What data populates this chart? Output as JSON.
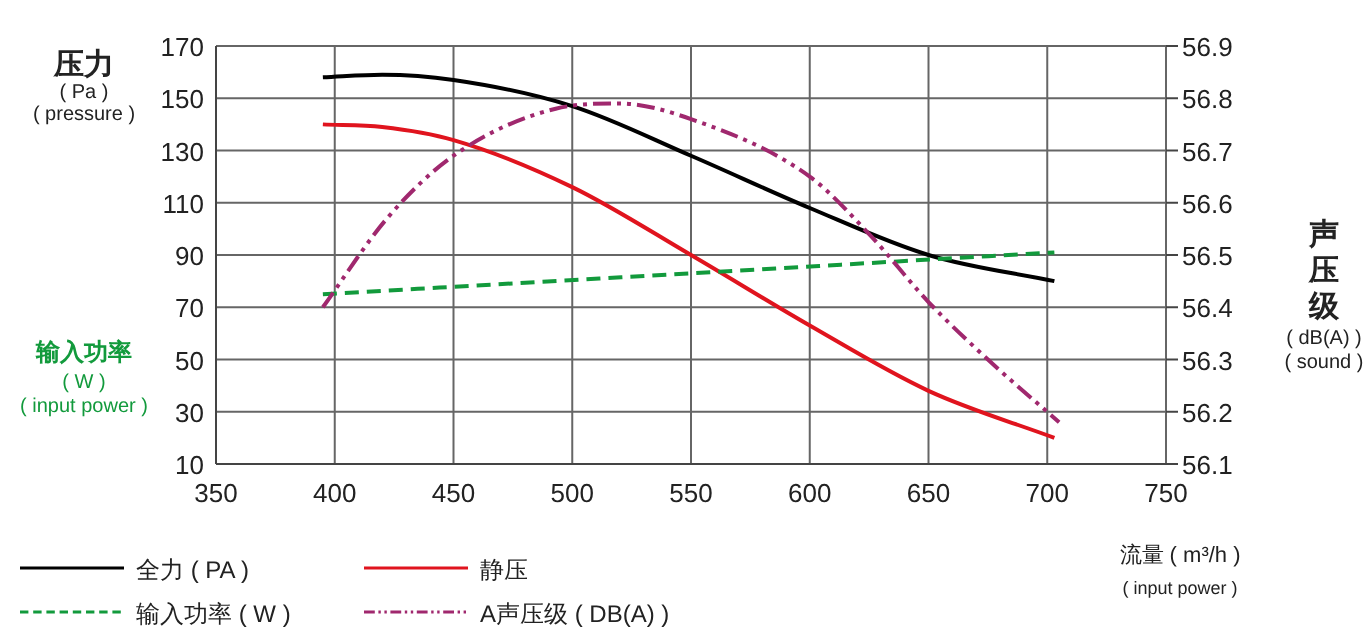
{
  "chart_data": {
    "type": "line",
    "xlabel": "流量 ( m³/h )\n( input power )",
    "ylabel": "压力\n( Pa )\n( pressure )",
    "y2label": "声压级\n( dB(A) )\n( sound )",
    "annotations": [
      "输入功率\n( W )\n( input power )"
    ],
    "xlim": [
      350,
      750
    ],
    "xticks": [
      350,
      400,
      450,
      500,
      550,
      600,
      650,
      700,
      750
    ],
    "ylim": [
      10,
      170
    ],
    "yticks": [
      10,
      30,
      50,
      70,
      90,
      110,
      130,
      150,
      170
    ],
    "y2lim": [
      56.1,
      56.9
    ],
    "y2ticks": [
      {
        "value": 56.1,
        "label": "56.1"
      },
      {
        "value": 56.2,
        "label": "56.2"
      },
      {
        "value": 56.3,
        "label": "56.3"
      },
      {
        "value": 56.4,
        "label": "56.4"
      },
      {
        "value": 56.5,
        "label": "56.5"
      },
      {
        "value": 56.6,
        "label": "56.6"
      },
      {
        "value": 56.7,
        "label": "56.7"
      },
      {
        "value": 56.8,
        "label": "56.8"
      },
      {
        "value": 56.9,
        "label": "56.9"
      }
    ],
    "grid": true,
    "legend": "bottom",
    "marker": "none",
    "series": [
      {
        "name": "全力 ( PA )",
        "color": "#000000",
        "line_style": "solid",
        "x": [
          395,
          420,
          450,
          500,
          550,
          600,
          650,
          703
        ],
        "values": [
          158,
          159,
          157,
          147,
          128,
          108,
          90,
          80
        ]
      },
      {
        "name": "静压",
        "color": "#e0141e",
        "line_style": "solid",
        "x": [
          395,
          420,
          450,
          500,
          550,
          600,
          650,
          703
        ],
        "values": [
          140,
          139,
          134,
          116,
          90,
          63,
          38,
          20
        ]
      },
      {
        "name": "输入功率 ( W )",
        "color": "#129a3c",
        "line_style": "dashed",
        "x": [
          395,
          550,
          703
        ],
        "values": [
          75,
          83,
          91
        ]
      },
      {
        "name": "A声压级 ( DB(A) )",
        "color": "#a0286e",
        "line_style": "dashdot",
        "axis": "y2",
        "x": [
          395,
          422,
          450,
          493,
          520,
          550,
          600,
          625,
          650,
          675,
          705
        ],
        "values": [
          56.4,
          56.57,
          56.69,
          56.78,
          56.79,
          56.76,
          56.65,
          56.54,
          56.41,
          56.3,
          56.18
        ]
      }
    ]
  }
}
